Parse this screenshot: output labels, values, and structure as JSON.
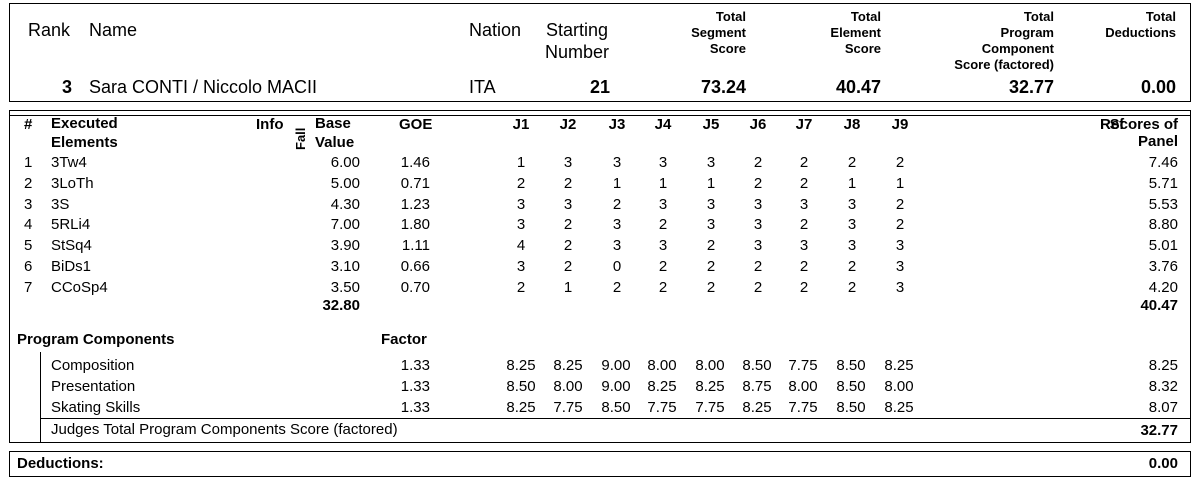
{
  "header": {
    "rank_label": "Rank",
    "name_label": "Name",
    "nation_label": "Nation",
    "starting_number_label": [
      "Starting",
      "Number"
    ],
    "tss_label": [
      "Total",
      "Segment",
      "Score"
    ],
    "tes_label": [
      "Total",
      "Element",
      "Score"
    ],
    "pcs_label": [
      "Total",
      "Program",
      "Component",
      "Score (factored)"
    ],
    "ded_label": [
      "Total",
      "Deductions"
    ],
    "rank": "3",
    "name": "Sara CONTI / Niccolo MACII",
    "nation": "ITA",
    "starting_number": "21",
    "tss": "73.24",
    "tes": "40.47",
    "pcs": "32.77",
    "deductions": "0.00"
  },
  "elements_table": {
    "col_hash": "#",
    "col_elements": [
      "Executed",
      "Elements"
    ],
    "col_info": "Info",
    "col_fall": "Fall",
    "col_base": [
      "Base",
      "Value"
    ],
    "col_goe": "GOE",
    "judges": [
      "J1",
      "J2",
      "J3",
      "J4",
      "J5",
      "J6",
      "J7",
      "J8",
      "J9"
    ],
    "col_ref": [
      "Ref",
      "Scores of",
      "Panel"
    ],
    "rows": [
      {
        "num": "1",
        "element": "3Tw4",
        "base": "6.00",
        "goe": "1.46",
        "j": [
          "1",
          "3",
          "3",
          "3",
          "3",
          "2",
          "2",
          "2",
          "2"
        ],
        "panel": "7.46"
      },
      {
        "num": "2",
        "element": "3LoTh",
        "base": "5.00",
        "goe": "0.71",
        "j": [
          "2",
          "2",
          "1",
          "1",
          "1",
          "2",
          "2",
          "1",
          "1"
        ],
        "panel": "5.71"
      },
      {
        "num": "3",
        "element": "3S",
        "base": "4.30",
        "goe": "1.23",
        "j": [
          "3",
          "3",
          "2",
          "3",
          "3",
          "3",
          "3",
          "3",
          "2"
        ],
        "panel": "5.53"
      },
      {
        "num": "4",
        "element": "5RLi4",
        "base": "7.00",
        "goe": "1.80",
        "j": [
          "3",
          "2",
          "3",
          "2",
          "3",
          "3",
          "2",
          "3",
          "2"
        ],
        "panel": "8.80"
      },
      {
        "num": "5",
        "element": "StSq4",
        "base": "3.90",
        "goe": "1.11",
        "j": [
          "4",
          "2",
          "3",
          "3",
          "2",
          "3",
          "3",
          "3",
          "3"
        ],
        "panel": "5.01"
      },
      {
        "num": "6",
        "element": "BiDs1",
        "base": "3.10",
        "goe": "0.66",
        "j": [
          "3",
          "2",
          "0",
          "2",
          "2",
          "2",
          "2",
          "2",
          "3"
        ],
        "panel": "3.76"
      },
      {
        "num": "7",
        "element": "CCoSp4",
        "base": "3.50",
        "goe": "0.70",
        "j": [
          "2",
          "1",
          "2",
          "2",
          "2",
          "2",
          "2",
          "2",
          "3"
        ],
        "panel": "4.20"
      }
    ],
    "base_total": "32.80",
    "panel_total": "40.47"
  },
  "components": {
    "title": "Program Components",
    "factor_label": "Factor",
    "rows": [
      {
        "name": "Composition",
        "factor": "1.33",
        "j": [
          "8.25",
          "8.25",
          "9.00",
          "8.00",
          "8.00",
          "8.50",
          "7.75",
          "8.50",
          "8.25"
        ],
        "panel": "8.25"
      },
      {
        "name": "Presentation",
        "factor": "1.33",
        "j": [
          "8.50",
          "8.00",
          "9.00",
          "8.25",
          "8.25",
          "8.75",
          "8.00",
          "8.50",
          "8.00"
        ],
        "panel": "8.32"
      },
      {
        "name": "Skating Skills",
        "factor": "1.33",
        "j": [
          "8.25",
          "7.75",
          "8.50",
          "7.75",
          "7.75",
          "8.25",
          "7.75",
          "8.50",
          "8.25"
        ],
        "panel": "8.07"
      }
    ],
    "total_label": "Judges Total Program Components Score (factored)",
    "total": "32.77"
  },
  "deductions": {
    "label": "Deductions:",
    "value": "0.00"
  }
}
